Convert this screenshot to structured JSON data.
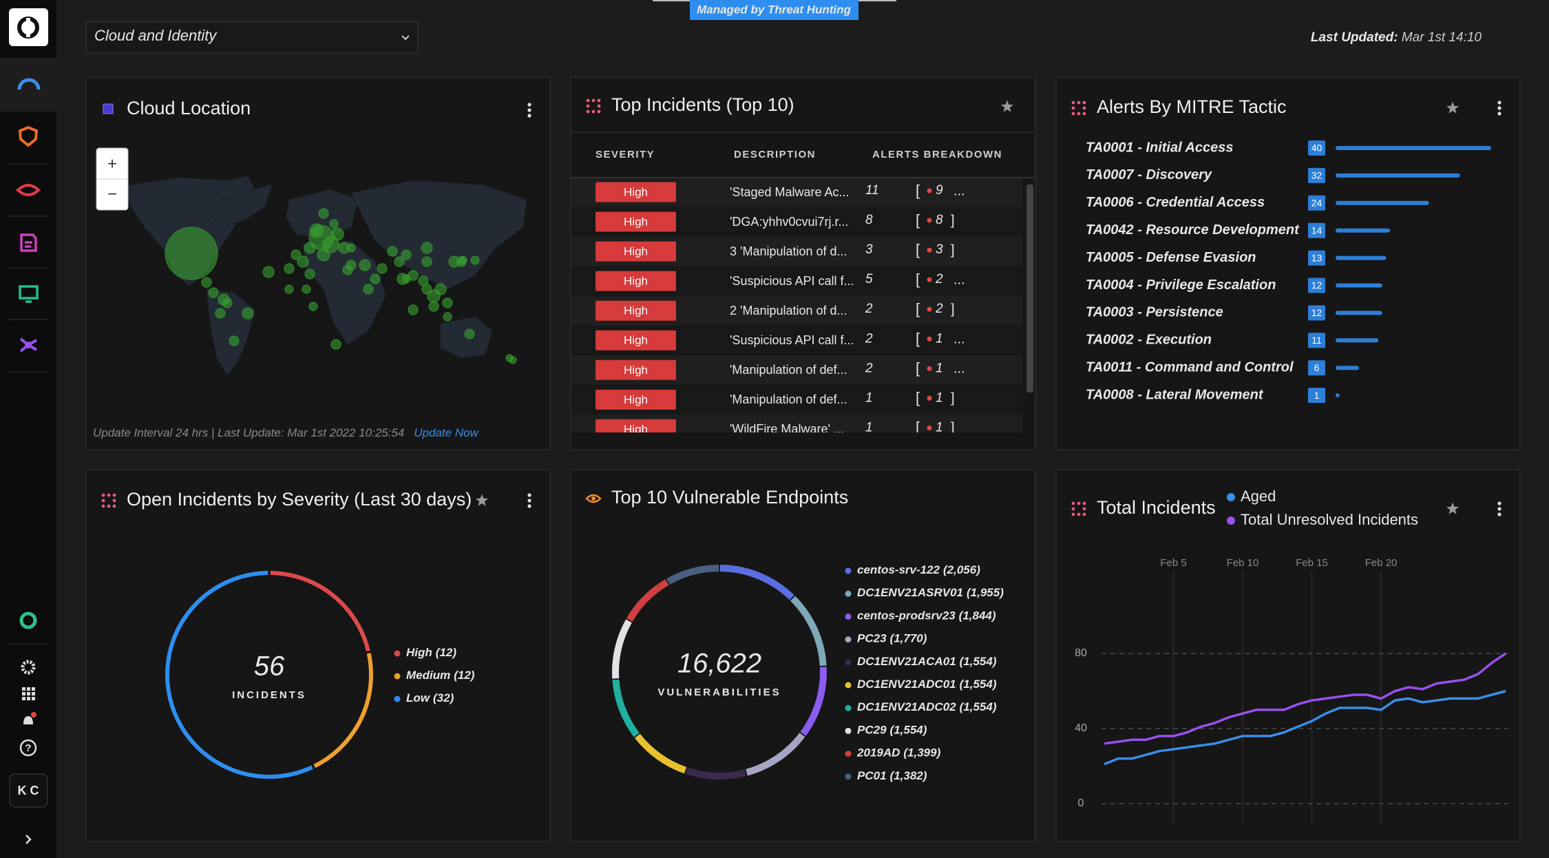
{
  "header": {
    "banner": "Managed by Threat Hunting",
    "dropdown": "Cloud and Identity",
    "last_updated_label": "Last Updated:",
    "last_updated": "Mar 1st 14:10"
  },
  "sidebar": {
    "user_initials": "K C"
  },
  "cloud_location": {
    "title": "Cloud Location",
    "zoom_in": "+",
    "zoom_out": "−",
    "footer": "Update Interval 24 hrs | Last Update: Mar 1st 2022 10:25:54",
    "update_link": "Update Now"
  },
  "top_incidents": {
    "title": "Top Incidents (Top 10)",
    "columns": [
      "SEVERITY",
      "DESCRIPTION",
      "ALERTS BREAKDOWN"
    ],
    "bracket_open": "[",
    "rows": [
      {
        "severity": "High",
        "description": "'Staged Malware Ac...",
        "alerts": 11,
        "high": 9,
        "end": "..."
      },
      {
        "severity": "High",
        "description": "'DGA:yhhv0cvui7rj.r...",
        "alerts": 8,
        "high": 8,
        "end": "]"
      },
      {
        "severity": "High",
        "description": "3 'Manipulation of d...",
        "alerts": 3,
        "high": 3,
        "end": "]"
      },
      {
        "severity": "High",
        "description": "'Suspicious API call f...",
        "alerts": 5,
        "high": 2,
        "end": "..."
      },
      {
        "severity": "High",
        "description": "2 'Manipulation of d...",
        "alerts": 2,
        "high": 2,
        "end": "]"
      },
      {
        "severity": "High",
        "description": "'Suspicious API call f...",
        "alerts": 2,
        "high": 1,
        "end": "..."
      },
      {
        "severity": "High",
        "description": "'Manipulation of def...",
        "alerts": 2,
        "high": 1,
        "end": "..."
      },
      {
        "severity": "High",
        "description": "'Manipulation of def...",
        "alerts": 1,
        "high": 1,
        "end": "]"
      },
      {
        "severity": "High",
        "description": "'WildFire Malware' ...",
        "alerts": 1,
        "high": 1,
        "end": "]"
      }
    ]
  },
  "alerts_by_mitre": {
    "title": "Alerts By MITRE Tactic",
    "chart": {
      "type": "bar",
      "orientation": "horizontal",
      "color": "#2d7fd8",
      "xlim": [
        0,
        40
      ],
      "categories": [
        "TA0001 - Initial Access",
        "TA0007 - Discovery",
        "TA0006 - Credential Access",
        "TA0042 - Resource Development",
        "TA0005 - Defense Evasion",
        "TA0004 - Privilege Escalation",
        "TA0003 - Persistence",
        "TA0002 - Execution",
        "TA0011 - Command and Control",
        "TA0008 - Lateral Movement"
      ],
      "values": [
        40,
        32,
        24,
        14,
        13,
        12,
        12,
        11,
        6,
        1
      ]
    }
  },
  "open_incidents": {
    "title": "Open Incidents by Severity (Last 30 days)",
    "chart": {
      "type": "donut",
      "total": 56,
      "total_caption": "INCIDENTS",
      "categories": [
        "High",
        "Medium",
        "Low"
      ],
      "values": [
        12,
        12,
        32
      ],
      "value_labels": [
        "(12)",
        "(12)",
        "(32)"
      ],
      "colors": [
        "#dd4a4a",
        "#efa02e",
        "#2d8ef0"
      ]
    }
  },
  "vulnerable_endpoints": {
    "title": "Top 10 Vulnerable Endpoints",
    "chart": {
      "type": "donut",
      "total": 16622,
      "total_label": "16,622",
      "total_caption": "VULNERABILITIES",
      "categories": [
        "centos-srv-122",
        "DC1ENV21ASRV01",
        "centos-prodsrv23",
        "PC23",
        "DC1ENV21ACA01",
        "DC1ENV21ADC01",
        "DC1ENV21ADC02",
        "PC29",
        "2019AD",
        "PC01"
      ],
      "values": [
        2056,
        1955,
        1844,
        1770,
        1554,
        1554,
        1554,
        1554,
        1399,
        1382
      ],
      "value_labels": [
        "(2,056)",
        "(1,955)",
        "(1,844)",
        "(1,770)",
        "(1,554)",
        "(1,554)",
        "(1,554)",
        "(1,554)",
        "(1,399)",
        "(1,382)"
      ],
      "colors": [
        "#5b6ee0",
        "#7fa8b8",
        "#8a5cf0",
        "#a6a6c4",
        "#3a2a4e",
        "#e8c030",
        "#1fb0a0",
        "#e2e2e2",
        "#d04040",
        "#4a6080"
      ]
    }
  },
  "total_incidents": {
    "title": "Total Incidents",
    "chart": {
      "type": "line",
      "grid": true,
      "x": [
        0,
        1,
        2,
        3,
        4,
        5,
        6,
        7,
        8,
        9,
        10,
        11,
        12,
        13,
        14,
        15,
        16,
        17,
        18,
        19,
        20,
        21,
        22,
        23,
        24,
        25,
        26,
        27,
        28,
        29
      ],
      "xlim": [
        0,
        29
      ],
      "xticks": [
        {
          "value": 5,
          "label": "Feb 5"
        },
        {
          "value": 10,
          "label": "Feb 10"
        },
        {
          "value": 15,
          "label": "Feb 15"
        },
        {
          "value": 20,
          "label": "Feb 20"
        }
      ],
      "ylim": [
        0,
        80
      ],
      "yticks": [
        0,
        40,
        80
      ],
      "series": [
        {
          "name": "Aged",
          "color": "#3a8ee8",
          "values": [
            21,
            24,
            24,
            26,
            28,
            29,
            30,
            31,
            32,
            34,
            36,
            36,
            36,
            38,
            41,
            44,
            48,
            51,
            51,
            51,
            50,
            55,
            56,
            54,
            55,
            56,
            56,
            56,
            58,
            60
          ]
        },
        {
          "name": "Total Unresolved Incidents",
          "color": "#9a50f0",
          "values": [
            32,
            33,
            34,
            34,
            36,
            36,
            38,
            41,
            43,
            46,
            48,
            50,
            50,
            50,
            53,
            55,
            56,
            57,
            58,
            58,
            56,
            60,
            62,
            61,
            64,
            65,
            66,
            69,
            75,
            80
          ]
        }
      ]
    }
  }
}
